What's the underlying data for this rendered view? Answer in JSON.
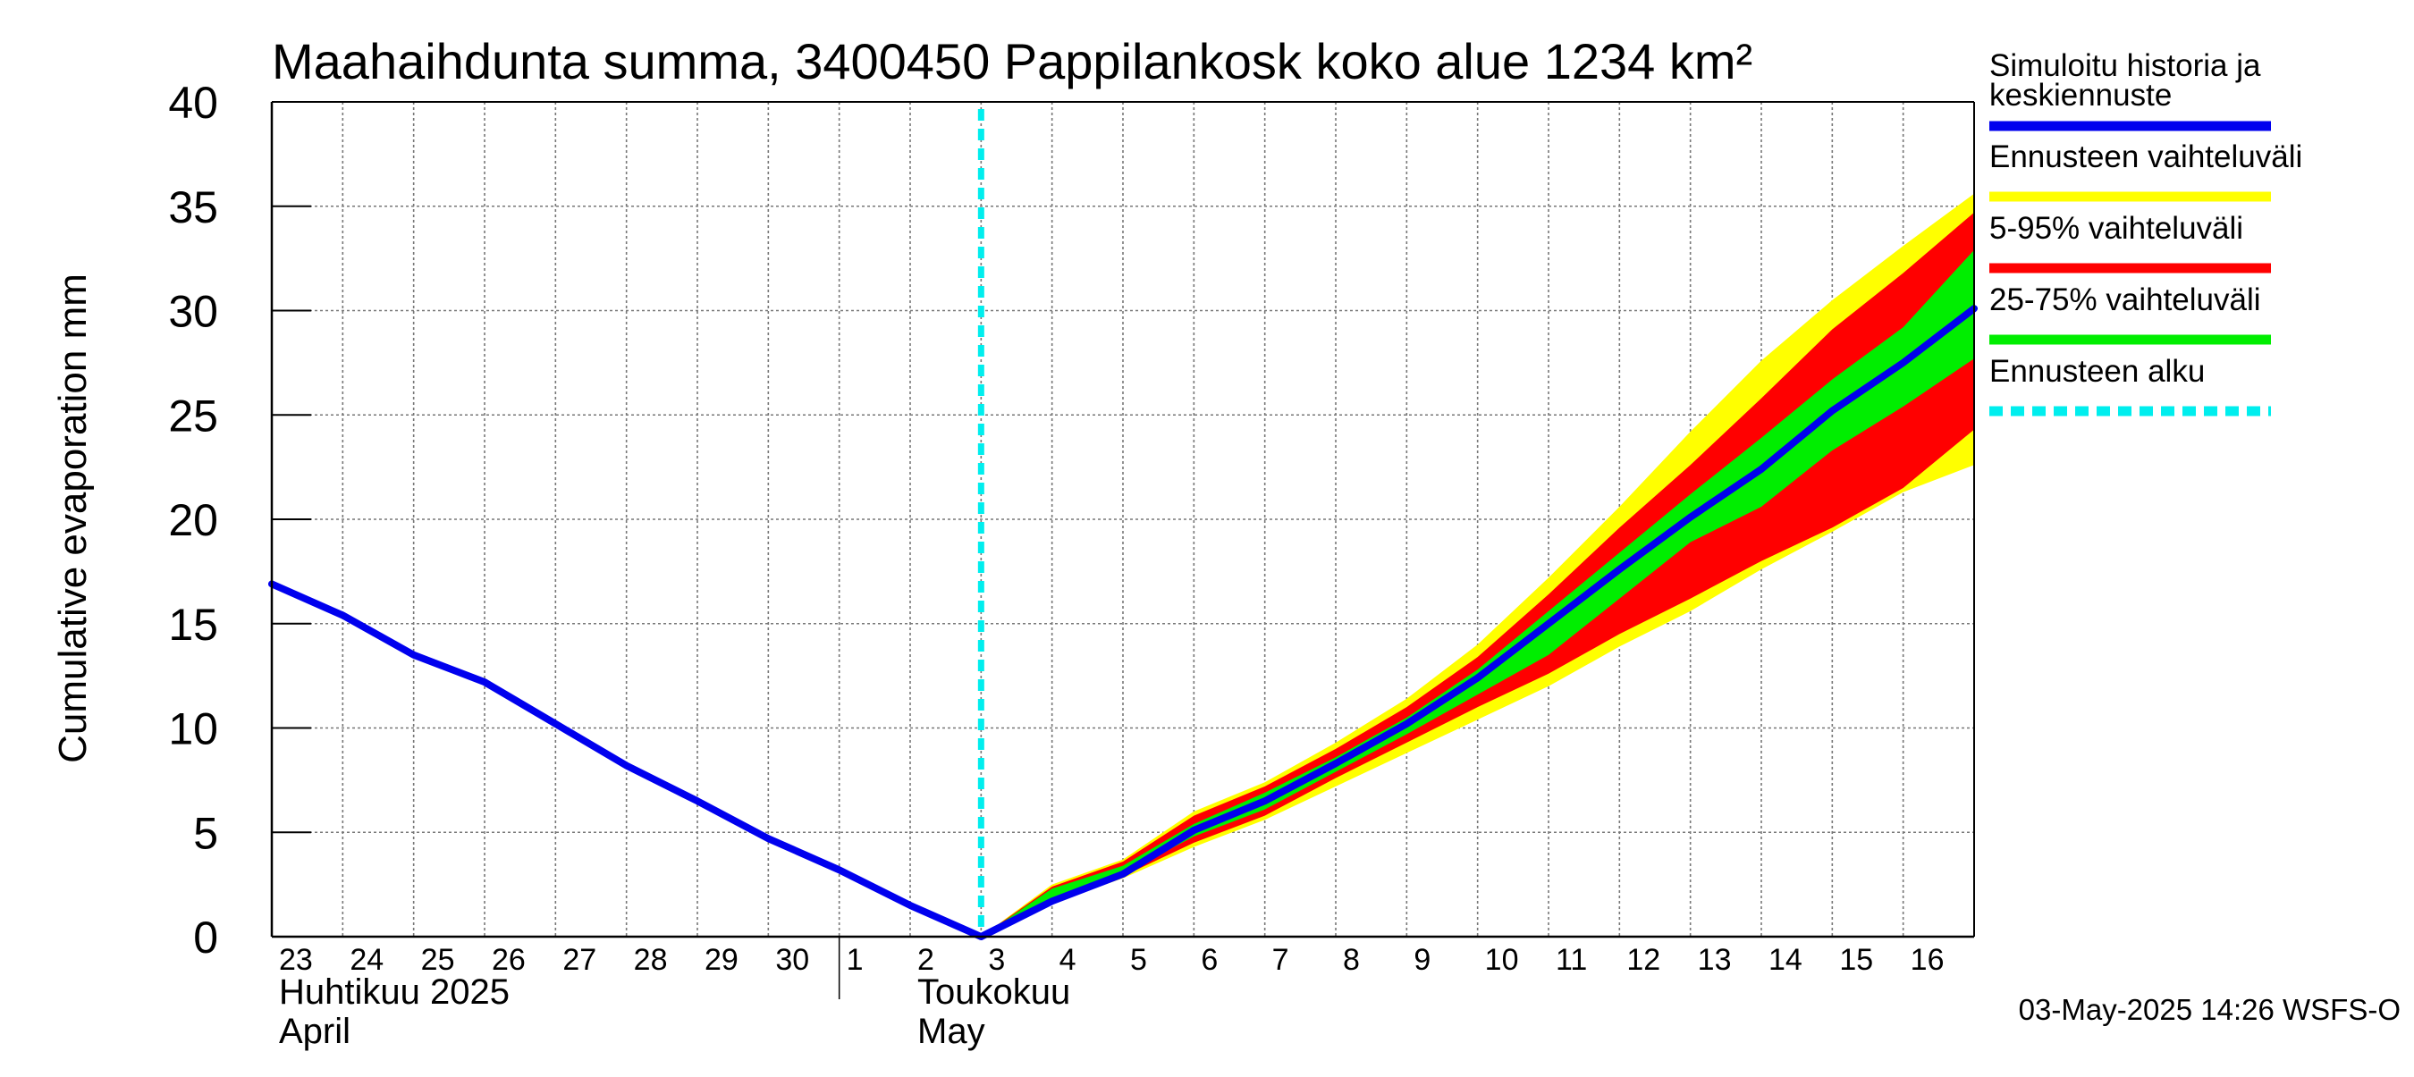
{
  "chart_data": {
    "type": "area",
    "title": "Maahaihdunta summa, 3400450 Pappilankosk koko alue 1234 km²",
    "ylabel": "Cumulative evaporation   mm",
    "ylim": [
      0,
      40
    ],
    "yticks": [
      "0",
      "5",
      "10",
      "15",
      "20",
      "25",
      "30",
      "35",
      "40"
    ],
    "grid": true,
    "x_start_date": "2025-04-23",
    "x_end_date": "2025-05-17",
    "xtick_labels": [
      "23",
      "24",
      "25",
      "26",
      "27",
      "28",
      "29",
      "30",
      "1",
      "2",
      "3",
      "4",
      "5",
      "6",
      "7",
      "8",
      "9",
      "10",
      "11",
      "12",
      "13",
      "14",
      "15",
      "16"
    ],
    "month_labels": [
      {
        "line1": "Huhtikuu  2025",
        "line2": "April"
      },
      {
        "line1": "Toukokuu",
        "line2": "May"
      }
    ],
    "forecast_start": "2025-05-03",
    "legend_placement": "right",
    "legend": [
      {
        "label": "Simuloitu historia ja keskiennuste",
        "color": "#0000ee",
        "style": "solid"
      },
      {
        "label": "Ennusteen vaihteluväli",
        "color": "#ffff00",
        "style": "solid"
      },
      {
        "label": "5-95% vaihteluväli",
        "color": "#ff0000",
        "style": "solid"
      },
      {
        "label": "25-75% vaihteluväli",
        "color": "#00ee00",
        "style": "solid"
      },
      {
        "label": "Ennusteen alku",
        "color": "#00eeee",
        "style": "dashed"
      }
    ],
    "series": [
      {
        "name": "Simuloitu historia ja keskiennuste",
        "color": "#0000ee",
        "points": [
          [
            "2025-04-23",
            16.9
          ],
          [
            "2025-04-24",
            15.4
          ],
          [
            "2025-04-25",
            13.5
          ],
          [
            "2025-04-26",
            12.2
          ],
          [
            "2025-04-27",
            10.2
          ],
          [
            "2025-04-28",
            8.2
          ],
          [
            "2025-04-29",
            6.5
          ],
          [
            "2025-04-30",
            4.7
          ],
          [
            "2025-05-01",
            3.2
          ],
          [
            "2025-05-02",
            1.5
          ],
          [
            "2025-05-03",
            0.0
          ],
          [
            "2025-05-04",
            1.7
          ],
          [
            "2025-05-05",
            3.0
          ],
          [
            "2025-05-06",
            5.1
          ],
          [
            "2025-05-07",
            6.5
          ],
          [
            "2025-05-08",
            8.3
          ],
          [
            "2025-05-09",
            10.2
          ],
          [
            "2025-05-10",
            12.4
          ],
          [
            "2025-05-11",
            15.0
          ],
          [
            "2025-05-12",
            17.6
          ],
          [
            "2025-05-13",
            20.1
          ],
          [
            "2025-05-14",
            22.4
          ],
          [
            "2025-05-15",
            25.2
          ],
          [
            "2025-05-16",
            27.5
          ],
          [
            "2025-05-17",
            30.1
          ]
        ]
      }
    ],
    "bands": [
      {
        "name": "Ennusteen vaihteluväli",
        "color": "#ffff00",
        "x": [
          "2025-05-03",
          "2025-05-04",
          "2025-05-05",
          "2025-05-06",
          "2025-05-07",
          "2025-05-08",
          "2025-05-09",
          "2025-05-10",
          "2025-05-11",
          "2025-05-12",
          "2025-05-13",
          "2025-05-14",
          "2025-05-15",
          "2025-05-16",
          "2025-05-17"
        ],
        "upper": [
          0.0,
          2.5,
          3.7,
          6.0,
          7.4,
          9.3,
          11.4,
          14.0,
          17.2,
          20.6,
          24.2,
          27.6,
          30.5,
          33.1,
          35.6
        ],
        "lower": [
          0.0,
          1.6,
          2.8,
          4.3,
          5.6,
          7.2,
          8.8,
          10.4,
          12.0,
          13.9,
          15.6,
          17.6,
          19.4,
          21.3,
          22.6
        ]
      },
      {
        "name": "5-95% vaihteluväli",
        "color": "#ff0000",
        "x": [
          "2025-05-03",
          "2025-05-04",
          "2025-05-05",
          "2025-05-06",
          "2025-05-07",
          "2025-05-08",
          "2025-05-09",
          "2025-05-10",
          "2025-05-11",
          "2025-05-12",
          "2025-05-13",
          "2025-05-14",
          "2025-05-15",
          "2025-05-16",
          "2025-05-17"
        ],
        "upper": [
          0.0,
          2.4,
          3.6,
          5.8,
          7.2,
          9.0,
          11.0,
          13.4,
          16.4,
          19.6,
          22.6,
          25.8,
          29.1,
          31.8,
          34.7
        ],
        "lower": [
          0.0,
          1.7,
          2.9,
          4.5,
          5.8,
          7.6,
          9.3,
          11.0,
          12.6,
          14.5,
          16.2,
          18.0,
          19.6,
          21.5,
          24.3
        ]
      },
      {
        "name": "25-75% vaihteluväli",
        "color": "#00ee00",
        "x": [
          "2025-05-03",
          "2025-05-04",
          "2025-05-05",
          "2025-05-06",
          "2025-05-07",
          "2025-05-08",
          "2025-05-09",
          "2025-05-10",
          "2025-05-11",
          "2025-05-12",
          "2025-05-13",
          "2025-05-14",
          "2025-05-15",
          "2025-05-16",
          "2025-05-17"
        ],
        "upper": [
          0.0,
          2.3,
          3.4,
          5.4,
          6.9,
          8.6,
          10.5,
          12.8,
          15.6,
          18.4,
          21.2,
          23.9,
          26.7,
          29.2,
          32.9
        ],
        "lower": [
          0.0,
          1.8,
          3.0,
          4.8,
          6.1,
          7.9,
          9.7,
          11.6,
          13.5,
          16.2,
          18.9,
          20.6,
          23.3,
          25.4,
          27.7
        ]
      }
    ]
  },
  "footer": {
    "timestamp": "03-May-2025 14:26 WSFS-O"
  }
}
